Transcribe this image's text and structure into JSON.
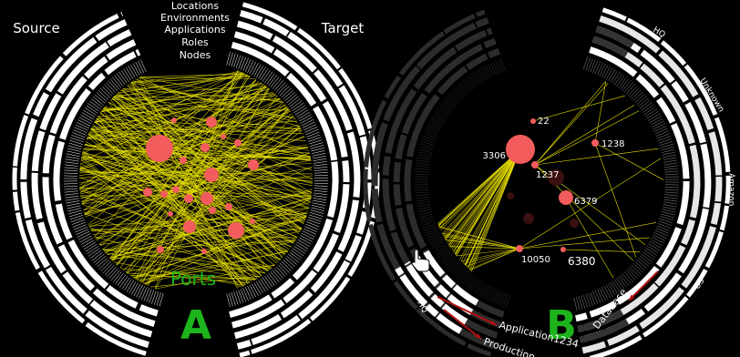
{
  "panel_a": {
    "label": "A",
    "source": "Source",
    "target": "Target",
    "levels": [
      "Locations",
      "Environments",
      "Applications",
      "Roles",
      "Nodes"
    ],
    "ports_label": "Ports"
  },
  "panel_b": {
    "label": "B",
    "ports": [
      "22",
      "3306",
      "1238",
      "1237",
      "6379",
      "10050",
      "6380"
    ],
    "ring_labels": [
      "HQ",
      "Unknown",
      "Amazon",
      "US",
      "HQ"
    ],
    "selection": [
      "Application1234",
      "Production",
      "Database"
    ]
  }
}
